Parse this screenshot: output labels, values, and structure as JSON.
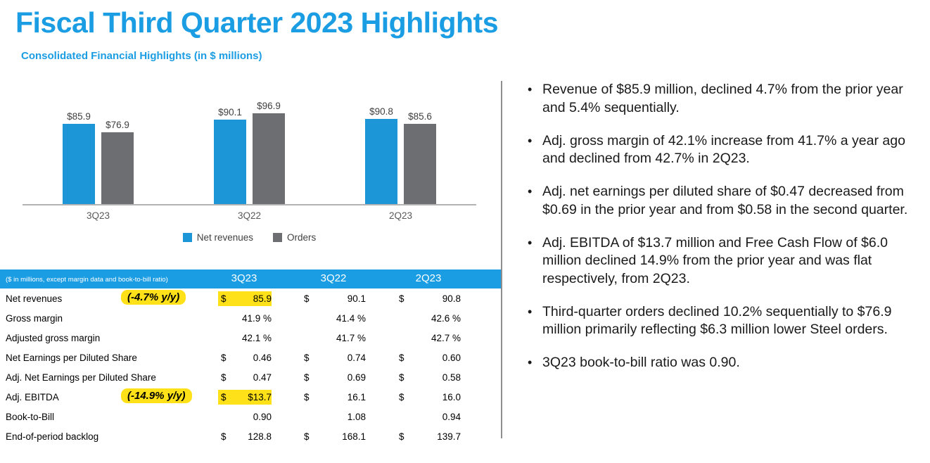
{
  "title": "Fiscal Third Quarter 2023 Highlights",
  "colors": {
    "accent_blue": "#1b9de3",
    "bar_blue": "#1c96d6",
    "bar_gray": "#6d6e71",
    "highlight_yellow": "#ffe11a"
  },
  "chart": {
    "title": "Consolidated Financial Highlights (in $ millions)",
    "legend": [
      {
        "label": "Net revenues",
        "color": "#1c96d6"
      },
      {
        "label": "Orders",
        "color": "#6d6e71"
      }
    ]
  },
  "chart_data": {
    "type": "bar",
    "title": "Consolidated Financial Highlights (in $ millions)",
    "categories": [
      "3Q23",
      "3Q22",
      "2Q23"
    ],
    "series": [
      {
        "name": "Net revenues",
        "color": "#1c96d6",
        "values": [
          85.9,
          90.1,
          90.8
        ]
      },
      {
        "name": "Orders",
        "color": "#6d6e71",
        "values": [
          76.9,
          96.9,
          85.6
        ]
      }
    ],
    "data_labels": [
      [
        "$85.9",
        "$76.9"
      ],
      [
        "$90.1",
        "$96.9"
      ],
      [
        "$90.8",
        "$85.6"
      ]
    ],
    "xlabel": "",
    "ylabel": "",
    "ylim": [
      0,
      100
    ],
    "grid": false,
    "legend_position": "bottom"
  },
  "table": {
    "header": {
      "note": "($ in millions, except margin data and book-to-bill ratio)",
      "columns": [
        "3Q23",
        "3Q22",
        "2Q23"
      ]
    },
    "rows": [
      {
        "label": "Net revenues",
        "annotation": "(-4.7% y/y)",
        "cells": [
          {
            "dollar": "$",
            "value": "85.9",
            "highlight": true
          },
          {
            "dollar": "$",
            "value": "90.1",
            "highlight": false
          },
          {
            "dollar": "$",
            "value": "90.8",
            "highlight": false
          }
        ]
      },
      {
        "label": "Gross margin",
        "annotation": "",
        "cells": [
          {
            "dollar": "",
            "value": "41.9 %",
            "highlight": false
          },
          {
            "dollar": "",
            "value": "41.4 %",
            "highlight": false
          },
          {
            "dollar": "",
            "value": "42.6 %",
            "highlight": false
          }
        ]
      },
      {
        "label": "Adjusted gross margin",
        "annotation": "",
        "cells": [
          {
            "dollar": "",
            "value": "42.1 %",
            "highlight": false
          },
          {
            "dollar": "",
            "value": "41.7 %",
            "highlight": false
          },
          {
            "dollar": "",
            "value": "42.7 %",
            "highlight": false
          }
        ]
      },
      {
        "label": "Net Earnings per Diluted Share",
        "annotation": "",
        "cells": [
          {
            "dollar": "$",
            "value": "0.46",
            "highlight": false
          },
          {
            "dollar": "$",
            "value": "0.74",
            "highlight": false
          },
          {
            "dollar": "$",
            "value": "0.60",
            "highlight": false
          }
        ]
      },
      {
        "label": "Adj. Net Earnings per Diluted Share",
        "annotation": "",
        "cells": [
          {
            "dollar": "$",
            "value": "0.47",
            "highlight": false
          },
          {
            "dollar": "$",
            "value": "0.69",
            "highlight": false
          },
          {
            "dollar": "$",
            "value": "0.58",
            "highlight": false
          }
        ]
      },
      {
        "label": "Adj. EBITDA",
        "annotation": "(-14.9% y/y)",
        "cells": [
          {
            "dollar": "$",
            "value": "$13.7",
            "highlight": true
          },
          {
            "dollar": "$",
            "value": "16.1",
            "highlight": false
          },
          {
            "dollar": "$",
            "value": "16.0",
            "highlight": false
          }
        ]
      },
      {
        "label": "Book-to-Bill",
        "annotation": "",
        "cells": [
          {
            "dollar": "",
            "value": "0.90",
            "highlight": false
          },
          {
            "dollar": "",
            "value": "1.08",
            "highlight": false
          },
          {
            "dollar": "",
            "value": "0.94",
            "highlight": false
          }
        ]
      },
      {
        "label": "End-of-period backlog",
        "annotation": "",
        "cells": [
          {
            "dollar": "$",
            "value": "128.8",
            "highlight": false
          },
          {
            "dollar": "$",
            "value": "168.1",
            "highlight": false
          },
          {
            "dollar": "$",
            "value": "139.7",
            "highlight": false
          }
        ]
      }
    ]
  },
  "bullets": [
    "Revenue of $85.9 million, declined 4.7% from the prior year and 5.4% sequentially.",
    "Adj. gross margin of 42.1% increase from 41.7% a year ago and declined from 42.7% in 2Q23.",
    "Adj. net earnings per diluted share of $0.47 decreased from $0.69 in the prior year and from $0.58 in the second quarter.",
    "Adj. EBITDA of $13.7 million and Free Cash Flow of $6.0 million declined 14.9% from the prior year and was flat respectively, from 2Q23.",
    "Third-quarter orders declined 10.2% sequentially to $76.9 million primarily reflecting $6.3 million lower Steel orders.",
    "3Q23 book-to-bill ratio was 0.90."
  ]
}
